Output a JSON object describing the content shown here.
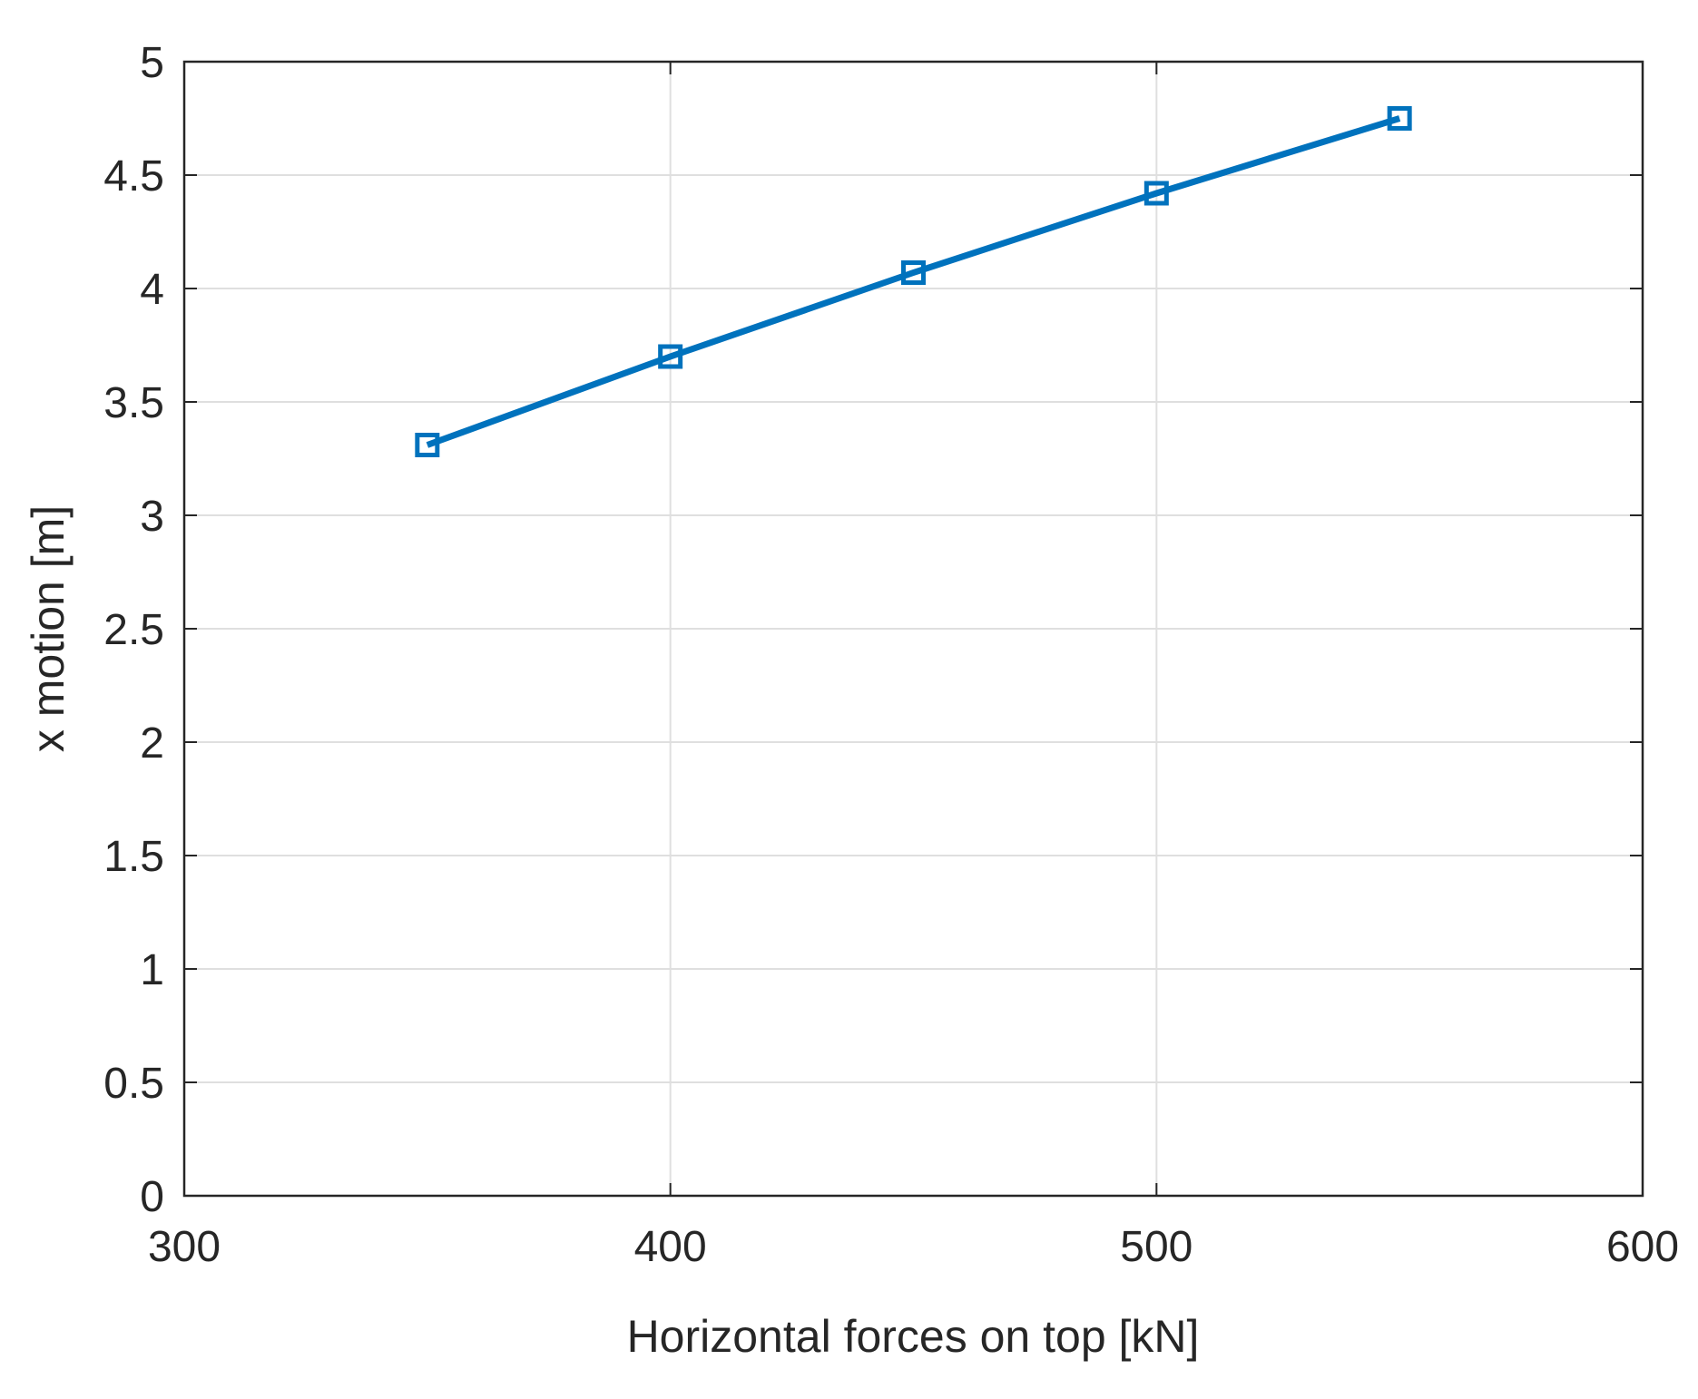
{
  "chart_data": {
    "type": "line",
    "xlabel": "Horizontal forces on top [kN]",
    "ylabel": "x motion [m]",
    "x": [
      350,
      400,
      450,
      500,
      550
    ],
    "series": [
      {
        "color": "#0072bd",
        "marker": "square",
        "values": [
          3.31,
          3.7,
          4.07,
          4.42,
          4.75
        ]
      }
    ],
    "xlim": [
      300,
      600
    ],
    "xticks": [
      300,
      400,
      500,
      600
    ],
    "ylim": [
      0,
      5
    ],
    "yticks": [
      0,
      0.5,
      1,
      1.5,
      2,
      2.5,
      3,
      3.5,
      4,
      4.5,
      5
    ],
    "grid": true
  }
}
